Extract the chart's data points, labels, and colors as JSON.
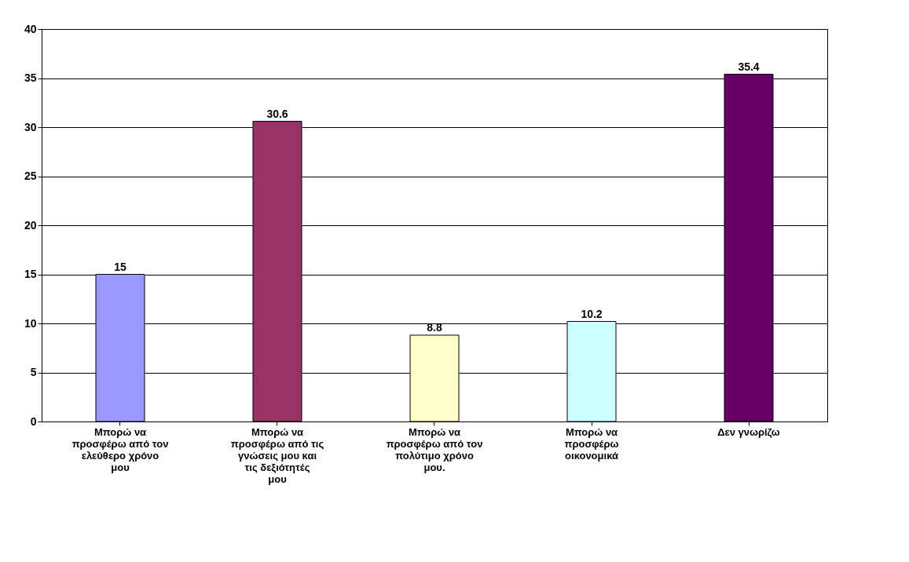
{
  "chart_data": {
    "type": "bar",
    "categories": [
      "Μπορώ να προσφέρω από τον ελεύθερο χρόνο μου",
      "Μπορώ να προσφέρω από τις γνώσεις μου και τις δεξιότητές μου",
      "Μπορώ να προσφέρω από τον πολύτιμο χρόνο μου.",
      "Μπορώ να προσφέρω οικονομικά",
      "Δεν  γνωρίζω"
    ],
    "values": [
      15,
      30.6,
      8.8,
      10.2,
      35.4
    ],
    "colors": [
      "#9999ff",
      "#993366",
      "#ffffcc",
      "#ccffff",
      "#660066"
    ],
    "ylim": [
      0,
      40
    ],
    "yticks": [
      0,
      5,
      10,
      15,
      20,
      25,
      30,
      35,
      40
    ],
    "grid": "y",
    "data_labels": true
  }
}
